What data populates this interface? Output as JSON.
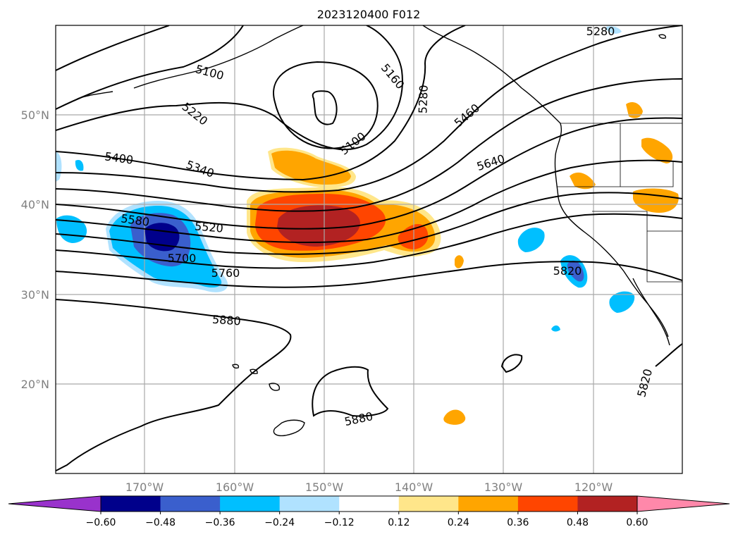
{
  "title": "2023120400 F012",
  "map": {
    "lat_labels": [
      "50°N",
      "40°N",
      "30°N",
      "20°N"
    ],
    "lon_labels": [
      "170°W",
      "160°W",
      "150°W",
      "140°W",
      "130°W",
      "120°W"
    ],
    "grid": true
  },
  "contour_labels": [
    "5280",
    "5160",
    "5100",
    "5100",
    "5280",
    "5220",
    "5460",
    "5400",
    "5340",
    "5640",
    "5580",
    "5520",
    "5700",
    "5760",
    "5820",
    "5880",
    "5880",
    "5820"
  ],
  "colorbar": {
    "ticks": [
      "−0.60",
      "−0.48",
      "−0.36",
      "−0.24",
      "−0.12",
      "0.12",
      "0.24",
      "0.36",
      "0.48",
      "0.60"
    ],
    "colors": [
      "#9932cc",
      "#00008b",
      "#3a5fcd",
      "#00bfff",
      "#b0e2ff",
      "#ffffff",
      "#ffe68a",
      "#ffa500",
      "#ff4500",
      "#b22222",
      "#ff88aa"
    ]
  }
}
